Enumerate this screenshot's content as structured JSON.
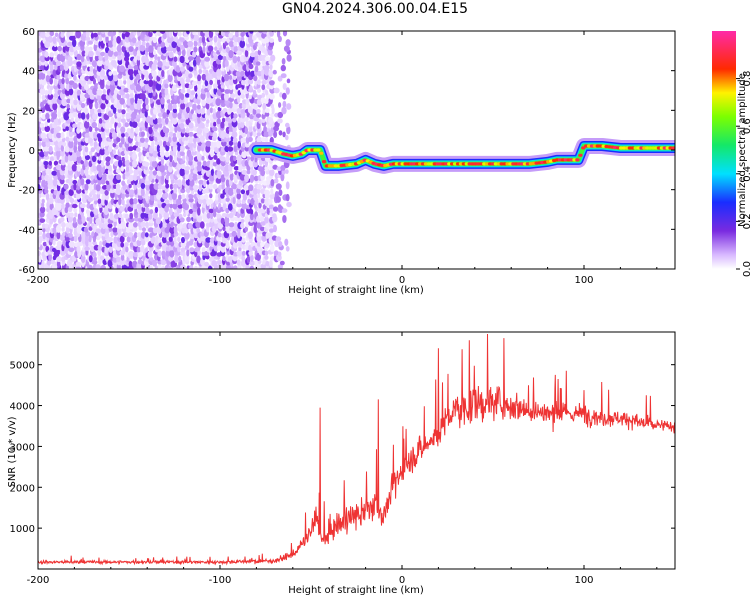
{
  "title": "GN04.2024.306.00.04.E15",
  "chart_data": [
    {
      "type": "heatmap",
      "xlabel": "Height of straight line (km)",
      "ylabel": "Frequency (Hz)",
      "xlim": [
        -200,
        150
      ],
      "ylim": [
        -60,
        60
      ],
      "xticks": [
        -200,
        -100,
        0,
        100
      ],
      "yticks": [
        -60,
        -40,
        -20,
        0,
        20,
        40,
        60
      ],
      "colorbar": {
        "label": "Normalized spectral amplitude",
        "range": [
          0,
          1
        ],
        "ticks": [
          0.0,
          0.2,
          0.4,
          0.6,
          0.8
        ],
        "tick_labels": [
          "0.0",
          "0.2",
          "0.4",
          "0.6",
          "0.8"
        ],
        "colormap": "white-violet-blue-cyan-green-yellow-red-magenta"
      },
      "noise_region": {
        "x": [
          -200,
          -72
        ],
        "y": [
          -60,
          60
        ],
        "amplitude": [
          0.05,
          0.25
        ]
      },
      "ridge": {
        "x": [
          -80,
          -72,
          -65,
          -60,
          -55,
          -52,
          -45,
          -42,
          -35,
          -25,
          -20,
          -15,
          -10,
          -5,
          0,
          10,
          20,
          30,
          40,
          50,
          60,
          70,
          80,
          85,
          90,
          97,
          100,
          110,
          120,
          130,
          140,
          150
        ],
        "frequency": [
          0,
          0,
          -2,
          -3,
          -2,
          0,
          0,
          -8,
          -8,
          -7,
          -5,
          -7,
          -8,
          -7,
          -7,
          -7,
          -7,
          -7,
          -7,
          -7,
          -7,
          -7,
          -6,
          -5,
          -5,
          -5,
          2,
          2,
          1,
          1,
          1,
          1
        ],
        "amplitude": 0.9
      }
    },
    {
      "type": "line",
      "xlabel": "Height of straight line (km)",
      "ylabel": "SNR (10 * v/v)",
      "xlim": [
        -200,
        150
      ],
      "ylim": [
        0,
        5800
      ],
      "xticks": [
        -200,
        -100,
        0,
        100
      ],
      "yticks": [
        1000,
        2000,
        3000,
        4000,
        5000
      ],
      "color": "#ee3333",
      "envelope": {
        "x": [
          -200,
          -150,
          -100,
          -70,
          -60,
          -55,
          -50,
          -47,
          -45,
          -42,
          -40,
          -35,
          -30,
          -25,
          -20,
          -15,
          -12,
          -10,
          -5,
          0,
          5,
          10,
          20,
          25,
          30,
          40,
          50,
          60,
          70,
          80,
          90,
          100,
          110,
          120,
          130,
          140,
          150
        ],
        "mean": [
          170,
          170,
          170,
          200,
          350,
          600,
          900,
          1300,
          800,
          700,
          900,
          1100,
          1200,
          1300,
          1400,
          1600,
          1400,
          1300,
          2000,
          2400,
          2700,
          2900,
          3300,
          3700,
          3900,
          4000,
          4100,
          4000,
          3900,
          3800,
          3800,
          3800,
          3700,
          3700,
          3600,
          3500,
          3500
        ],
        "noise": [
          60,
          60,
          60,
          80,
          150,
          250,
          350,
          500,
          300,
          350,
          400,
          500,
          500,
          500,
          550,
          600,
          500,
          500,
          500,
          500,
          500,
          500,
          550,
          600,
          650,
          700,
          650,
          550,
          500,
          450,
          400,
          380,
          350,
          300,
          280,
          260,
          250
        ]
      },
      "spikes": [
        {
          "x": -45,
          "y": 3950
        },
        {
          "x": -13,
          "y": 4150
        },
        {
          "x": 20,
          "y": 5400
        },
        {
          "x": 37,
          "y": 5600
        },
        {
          "x": 47,
          "y": 5750
        },
        {
          "x": 56,
          "y": 5650
        }
      ]
    }
  ]
}
